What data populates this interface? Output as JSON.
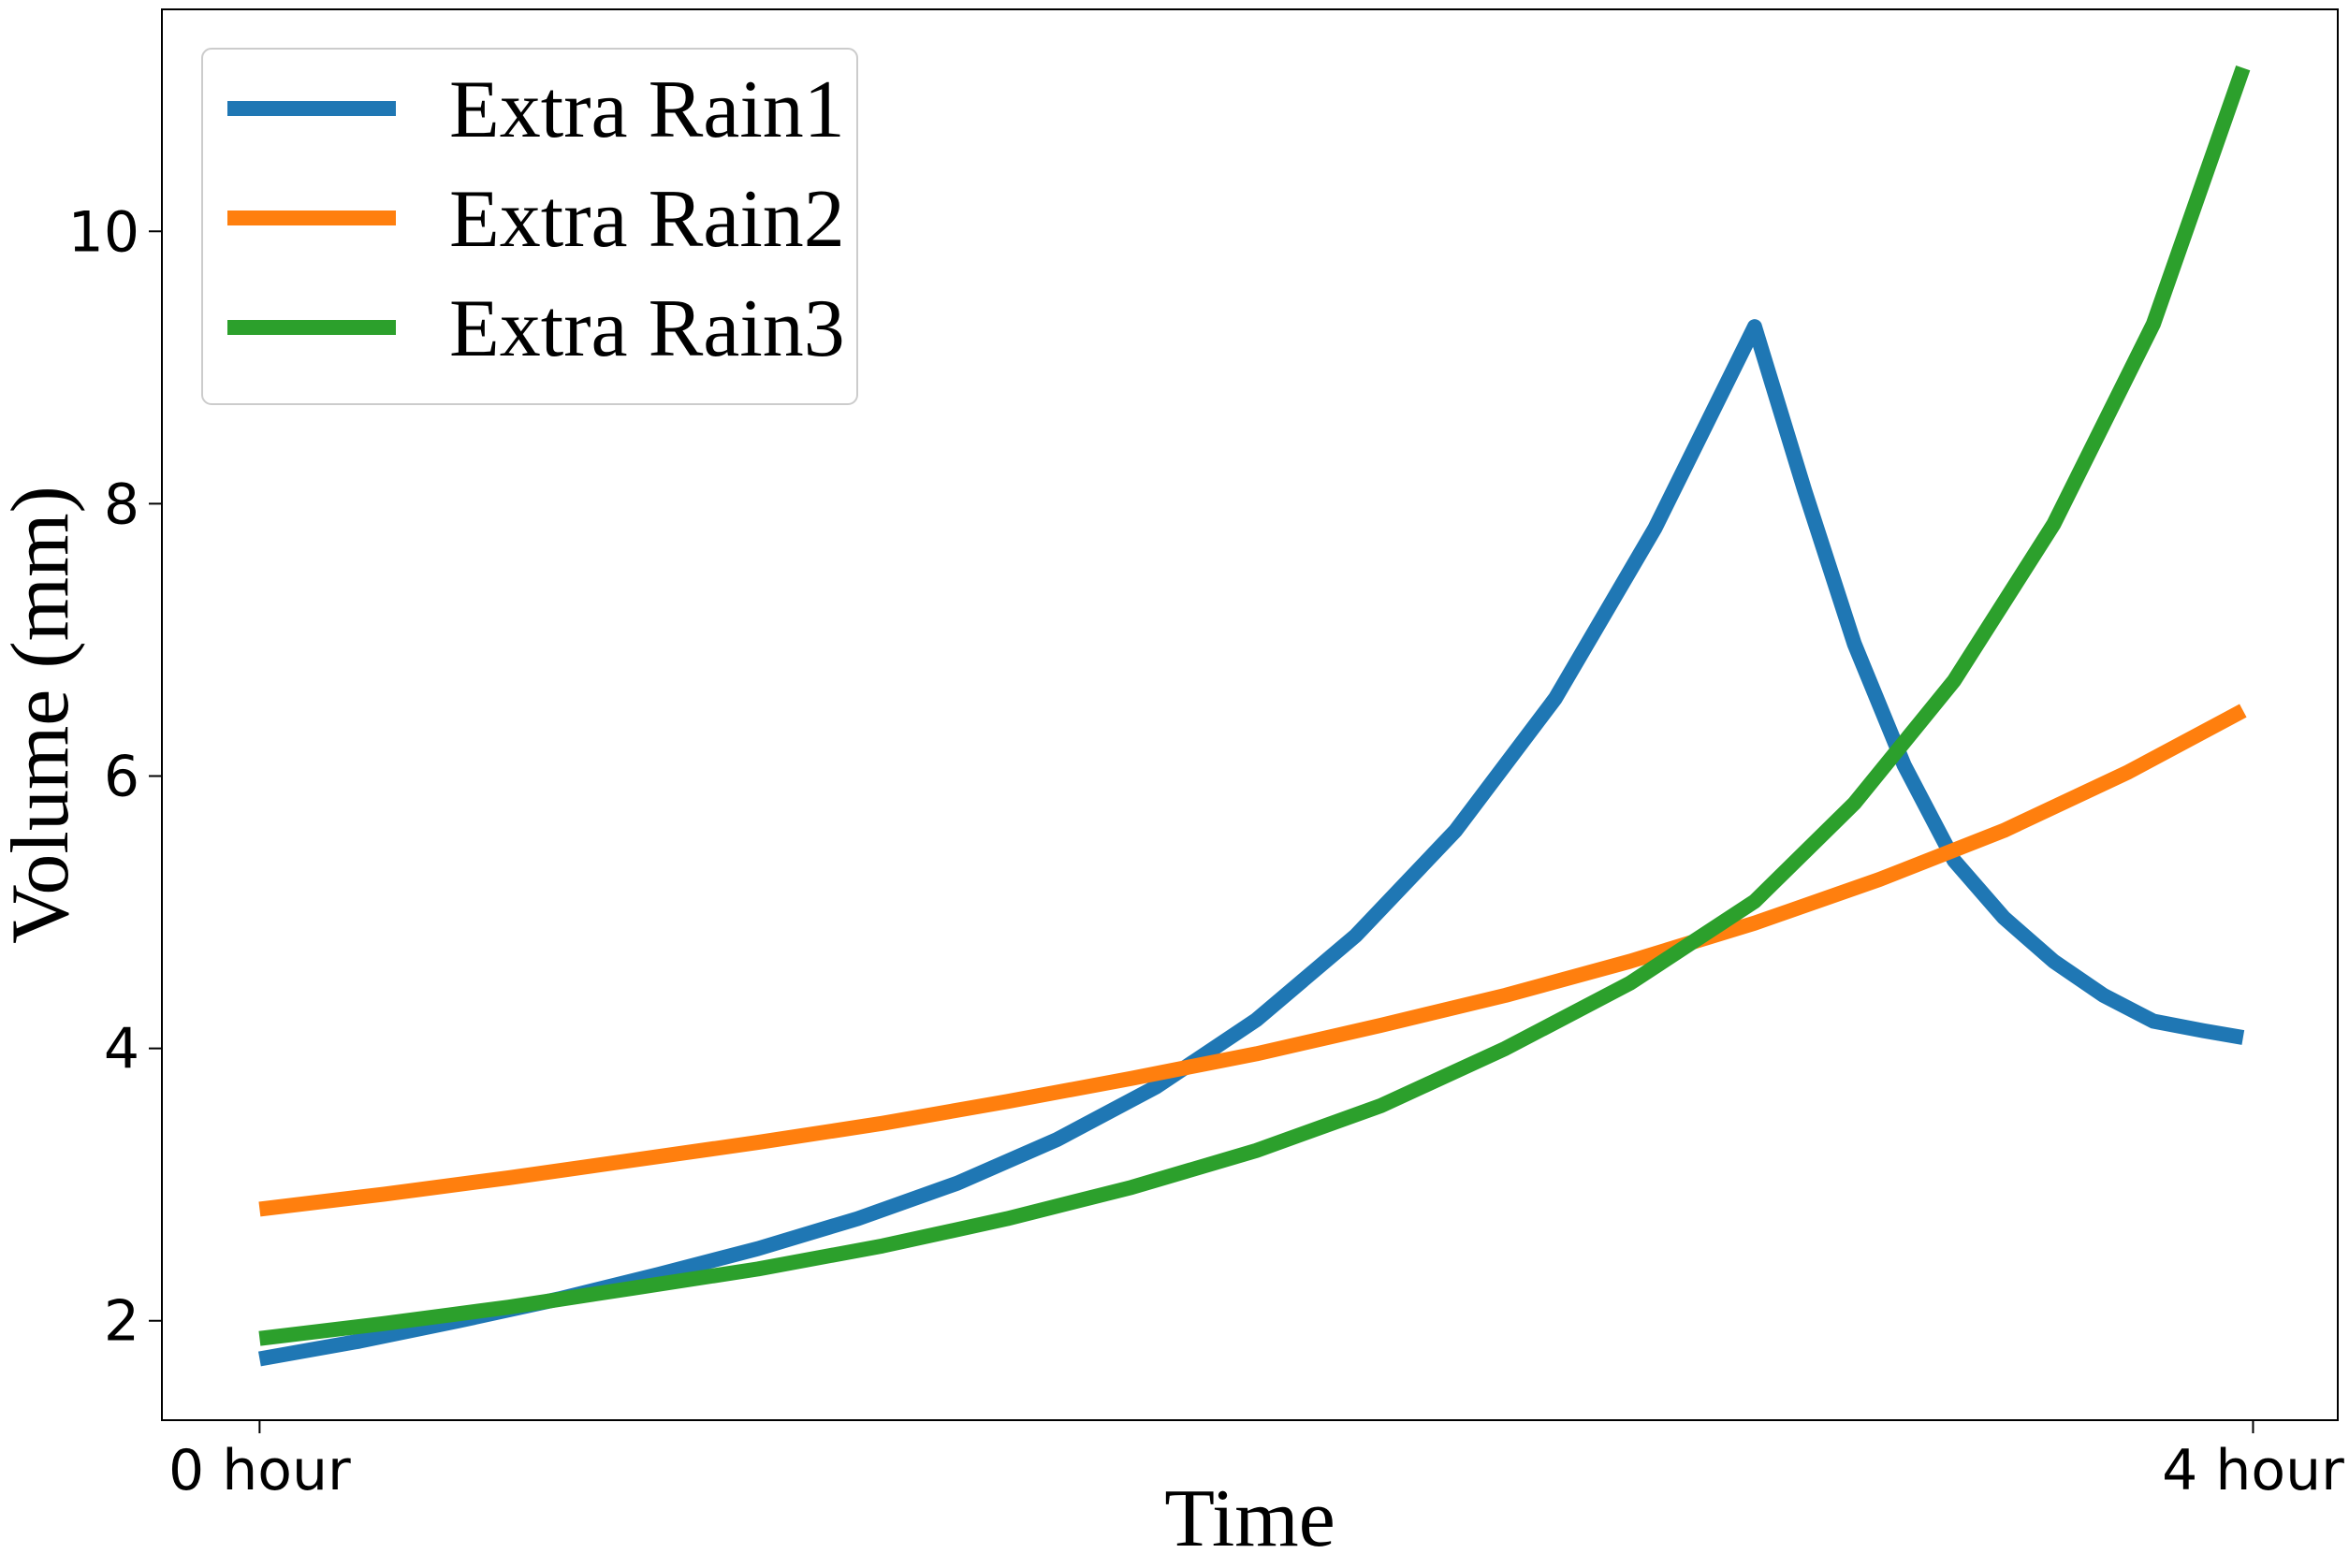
{
  "chart_data": {
    "type": "line",
    "xlabel": "Time",
    "ylabel": "Volume (mm)",
    "xlim": [
      -0.196,
      4.17
    ],
    "ylim": [
      1.27,
      11.63
    ],
    "x_ticks": [
      {
        "value": 0,
        "label": "0 hour"
      },
      {
        "value": 4,
        "label": "4 hour"
      }
    ],
    "y_ticks": [
      {
        "value": 2,
        "label": "2"
      },
      {
        "value": 4,
        "label": "4"
      },
      {
        "value": 6,
        "label": "6"
      },
      {
        "value": 8,
        "label": "8"
      },
      {
        "value": 10,
        "label": "10"
      }
    ],
    "legend_position": "top-left",
    "grid": false,
    "series": [
      {
        "name": "Extra Rain1",
        "color": "#1f77b4",
        "x": [
          0,
          0.2,
          0.4,
          0.6,
          0.8,
          1.0,
          1.2,
          1.4,
          1.6,
          1.8,
          2.0,
          2.2,
          2.4,
          2.6,
          2.8,
          3.0,
          3.1,
          3.2,
          3.3,
          3.4,
          3.5,
          3.6,
          3.7,
          3.8,
          3.9,
          3.98
        ],
        "values": [
          1.72,
          1.85,
          2.0,
          2.16,
          2.34,
          2.53,
          2.75,
          3.01,
          3.33,
          3.72,
          4.21,
          4.83,
          5.6,
          6.57,
          7.82,
          9.3,
          8.1,
          6.97,
          6.08,
          5.38,
          4.96,
          4.64,
          4.39,
          4.2,
          4.13,
          4.08
        ]
      },
      {
        "name": "Extra Rain2",
        "color": "#ff7f0e",
        "x": [
          0,
          0.25,
          0.5,
          0.75,
          1.0,
          1.25,
          1.5,
          1.75,
          2.0,
          2.25,
          2.5,
          2.75,
          3.0,
          3.25,
          3.5,
          3.75,
          3.98
        ],
        "values": [
          2.82,
          2.93,
          3.05,
          3.18,
          3.31,
          3.45,
          3.61,
          3.78,
          3.96,
          4.17,
          4.39,
          4.64,
          4.92,
          5.24,
          5.6,
          6.03,
          6.48
        ]
      },
      {
        "name": "Extra Rain3",
        "color": "#2ca02c",
        "x": [
          0,
          0.25,
          0.5,
          0.75,
          1.0,
          1.25,
          1.5,
          1.75,
          2.0,
          2.25,
          2.5,
          2.75,
          3.0,
          3.2,
          3.4,
          3.6,
          3.8,
          3.98
        ],
        "values": [
          1.87,
          1.98,
          2.1,
          2.24,
          2.38,
          2.55,
          2.75,
          2.98,
          3.25,
          3.58,
          4.0,
          4.48,
          5.08,
          5.8,
          6.7,
          7.85,
          9.32,
          11.2
        ]
      }
    ]
  }
}
